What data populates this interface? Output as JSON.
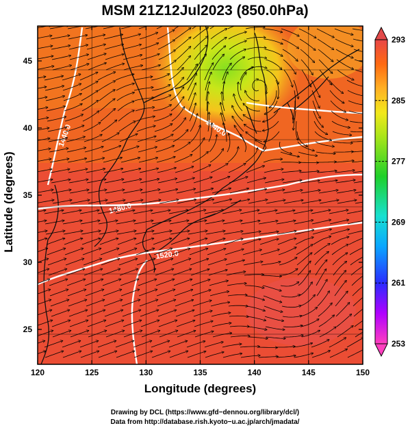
{
  "title": "MSM 21Z12Jul2023 (850.0hPa)",
  "axes": {
    "xlabel": "Longitude (degrees)",
    "ylabel": "Latitude  (degrees)",
    "xticks": [
      120,
      125,
      130,
      135,
      140,
      145,
      150
    ],
    "yticks": [
      25,
      30,
      35,
      40,
      45
    ],
    "xlim": [
      120,
      150
    ],
    "ylim": [
      22.4,
      47.6
    ]
  },
  "colorbar": {
    "ticks": [
      293,
      285,
      277,
      269,
      261,
      253
    ],
    "range": [
      253,
      293
    ],
    "colors": [
      "#ff3fbf",
      "#b000ff",
      "#2a2cff",
      "#0aa6ff",
      "#17e0d0",
      "#1fd02a",
      "#a8e51a",
      "#f2e81c",
      "#ffb024",
      "#ff6a12",
      "#e8403a",
      "#e24a4a"
    ]
  },
  "contours": [
    {
      "label": "1440.0"
    },
    {
      "label": "1440.0"
    },
    {
      "label": "1480.0"
    },
    {
      "label": "1520.0"
    }
  ],
  "credits": {
    "line1": "Drawing by DCL (https://www.gfd−dennou.org/library/dcl/)",
    "line2": "Data from http://database.rish.kyoto−u.ac.jp/arch/jmadata/"
  }
}
